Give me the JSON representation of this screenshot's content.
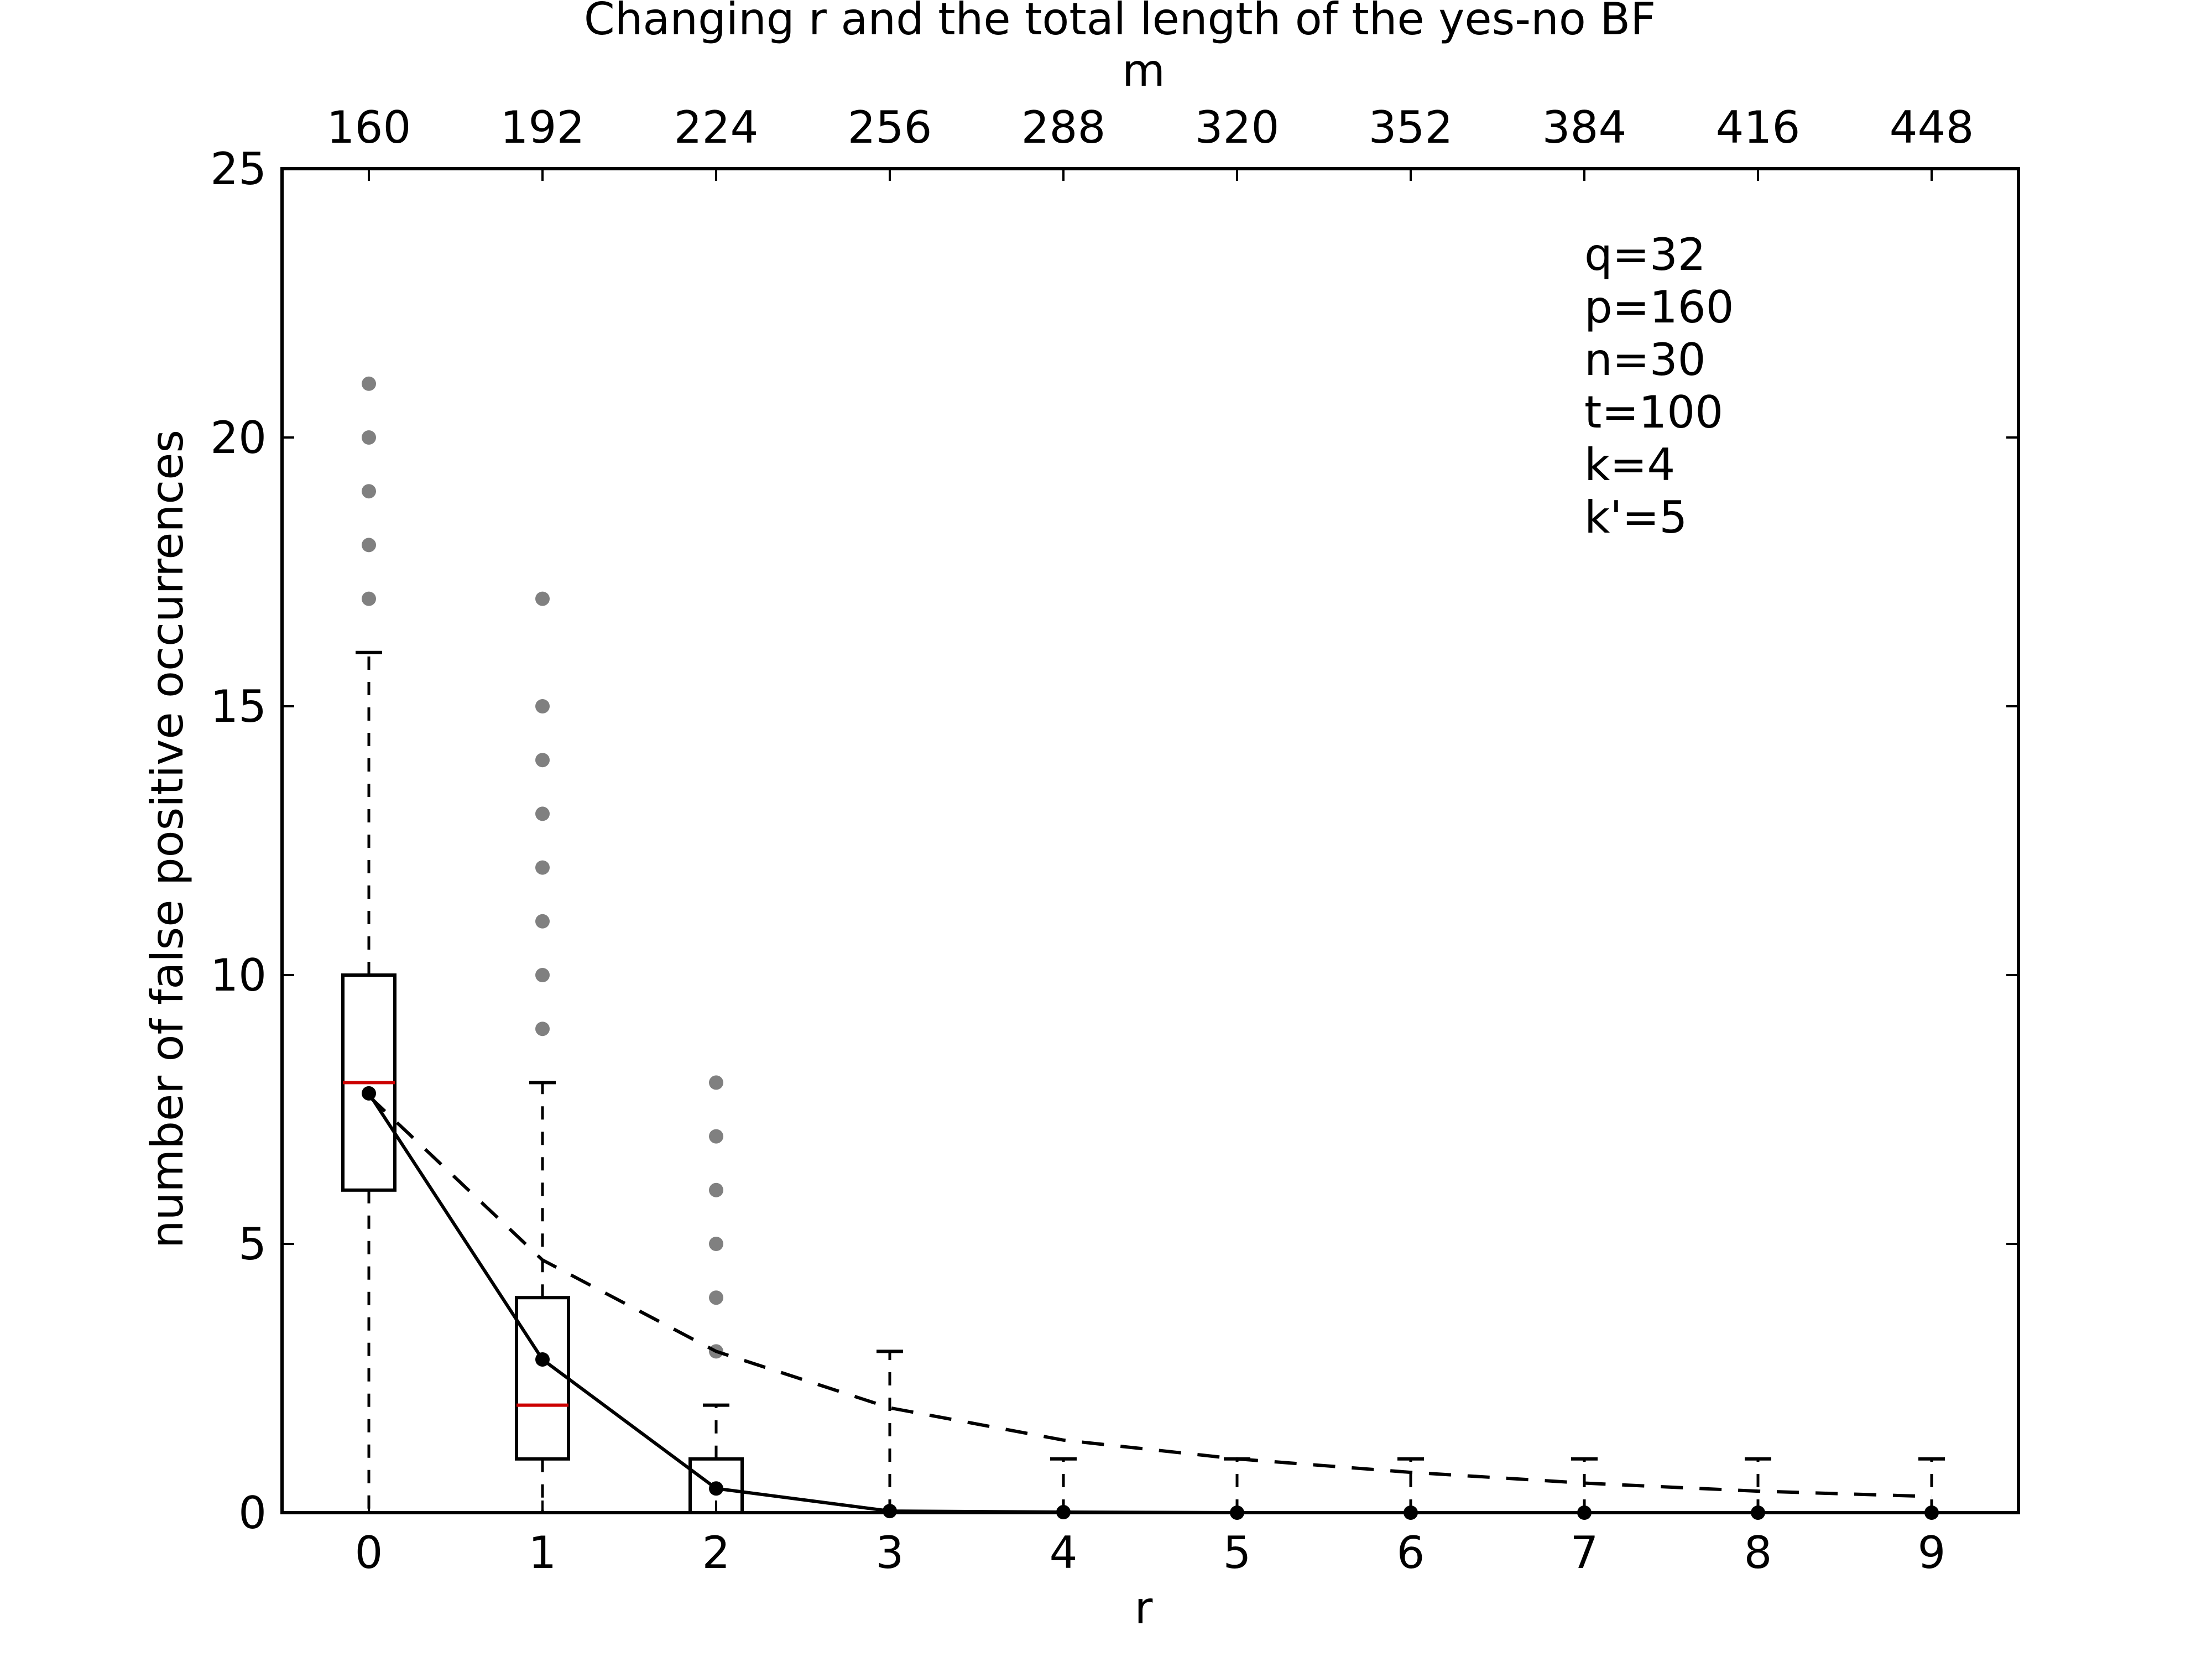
{
  "chart_data": {
    "type": "box",
    "title": "Changing r and the total length of the yes-no BF",
    "xlabel": "r",
    "ylabel": "number of false positive occurrences",
    "x2label": "m",
    "x": [
      0,
      1,
      2,
      3,
      4,
      5,
      6,
      7,
      8,
      9
    ],
    "x2_ticks": [
      160,
      192,
      224,
      256,
      288,
      320,
      352,
      384,
      416,
      448
    ],
    "y_ticks": [
      0,
      5,
      10,
      15,
      20,
      25
    ],
    "xlim": [
      -0.5,
      9.5
    ],
    "ylim": [
      0,
      25
    ],
    "grid": false,
    "annotations": [
      "q=32",
      "p=160",
      "n=30",
      "t=100",
      "k=4",
      "k'=5"
    ],
    "boxes": [
      {
        "x": 0,
        "q1": 6,
        "median": 8,
        "q3": 10,
        "whisker_low": 0,
        "whisker_high": 16,
        "outliers": [
          17,
          18,
          19,
          20,
          21
        ]
      },
      {
        "x": 1,
        "q1": 1,
        "median": 2,
        "q3": 4,
        "whisker_low": 0,
        "whisker_high": 8,
        "outliers": [
          9,
          10,
          11,
          12,
          13,
          14,
          15,
          17
        ]
      },
      {
        "x": 2,
        "q1": 0,
        "median": 0,
        "q3": 1,
        "whisker_low": 0,
        "whisker_high": 2,
        "outliers": [
          3,
          4,
          5,
          6,
          7,
          8
        ]
      },
      {
        "x": 3,
        "q1": 0,
        "median": 0,
        "q3": 0,
        "whisker_low": 0,
        "whisker_high": 3,
        "outliers": []
      },
      {
        "x": 4,
        "q1": 0,
        "median": 0,
        "q3": 0,
        "whisker_low": 0,
        "whisker_high": 1,
        "outliers": []
      },
      {
        "x": 5,
        "q1": 0,
        "median": 0,
        "q3": 0,
        "whisker_low": 0,
        "whisker_high": 1,
        "outliers": []
      },
      {
        "x": 6,
        "q1": 0,
        "median": 0,
        "q3": 0,
        "whisker_low": 0,
        "whisker_high": 1,
        "outliers": []
      },
      {
        "x": 7,
        "q1": 0,
        "median": 0,
        "q3": 0,
        "whisker_low": 0,
        "whisker_high": 1,
        "outliers": []
      },
      {
        "x": 8,
        "q1": 0,
        "median": 0,
        "q3": 0,
        "whisker_low": 0,
        "whisker_high": 1,
        "outliers": []
      },
      {
        "x": 9,
        "q1": 0,
        "median": 0,
        "q3": 0,
        "whisker_low": 0,
        "whisker_high": 1,
        "outliers": []
      }
    ],
    "series": [
      {
        "style": "solid",
        "marker": "dot",
        "values": [
          7.8,
          2.85,
          0.45,
          0.03,
          0.01,
          0.0,
          0.0,
          0.0,
          0.0,
          0.0
        ]
      },
      {
        "style": "dashed",
        "values": [
          7.75,
          4.7,
          3.0,
          1.95,
          1.35,
          1.0,
          0.75,
          0.55,
          0.4,
          0.3
        ]
      }
    ],
    "colors": {
      "median": "#cc0000",
      "outlier": "#808080",
      "line": "#000000"
    }
  }
}
